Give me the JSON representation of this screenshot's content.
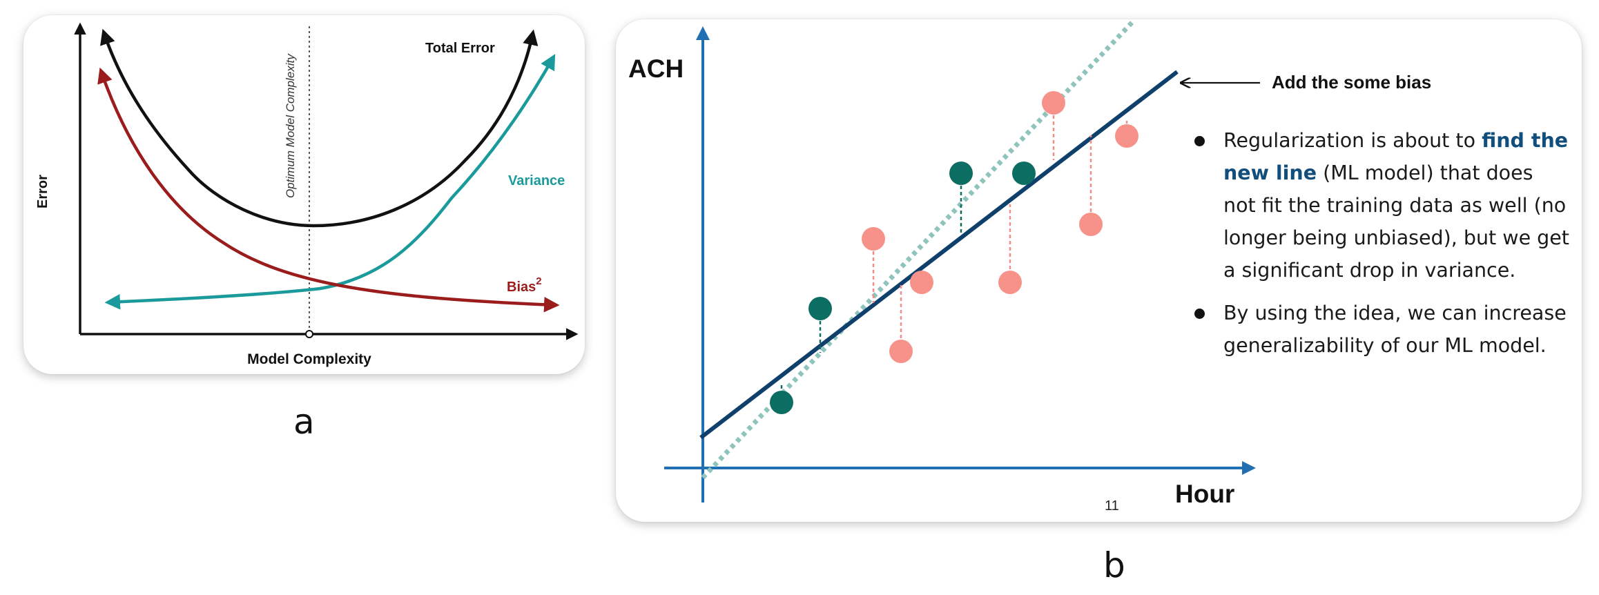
{
  "panel_a": {
    "caption": "a",
    "y_axis_label": "Error",
    "x_axis_label": "Model Complexity",
    "optimum_label": "Optimum Model Complexity",
    "curves": {
      "total_error": "Total Error",
      "variance": "Variance",
      "bias": "Bias",
      "bias_superscript": "2"
    },
    "colors": {
      "total_error": "#111111",
      "variance": "#1a9a9a",
      "bias": "#9b1c1c"
    }
  },
  "panel_b": {
    "caption": "b",
    "y_axis_label": "ACH",
    "x_axis_label": "Hour",
    "annotation": "Add the some bias",
    "page_number": "11",
    "bullets": [
      {
        "text_before": "Regularization is about to ",
        "highlight": "find the new line",
        "text_after": " (ML model) that does not fit the training data as well (no longer being unbiased), but we get a significant drop in variance."
      },
      {
        "text_before": "By using the idea, we can increase generalizability of our ML model."
      }
    ],
    "colors": {
      "axis": "#1f6fb2",
      "new_line": "#0f3f6b",
      "fitted_line": "#8fc4bd",
      "train_points": "#0c6e63",
      "test_points": "#f7928a",
      "highlight": "#124e7c"
    }
  }
}
